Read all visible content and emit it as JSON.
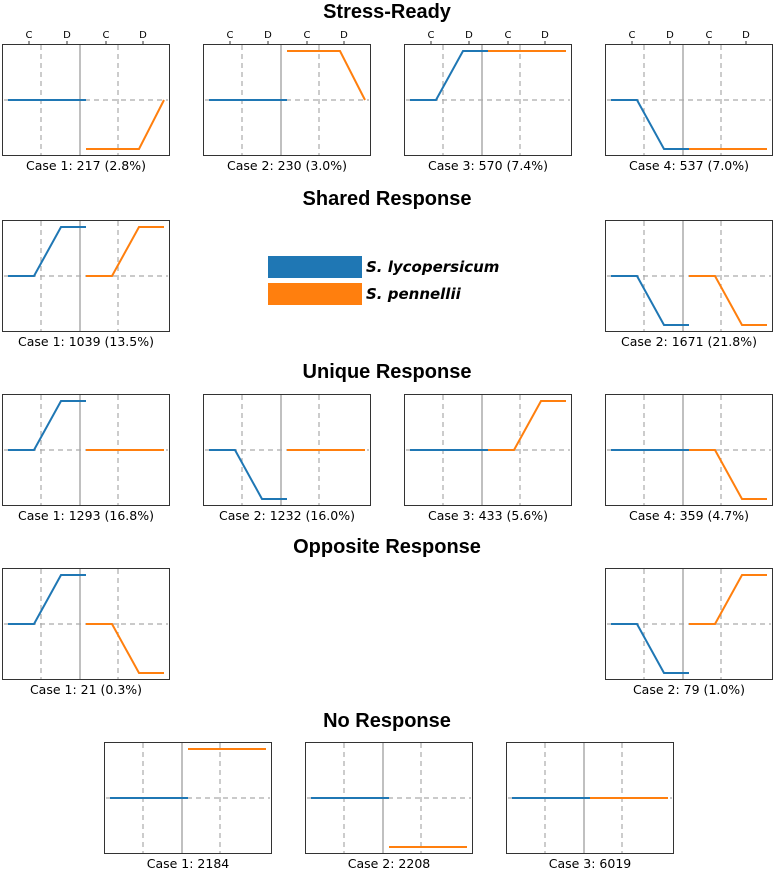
{
  "sections": [
    {
      "title": "Stress-Ready",
      "legend": false,
      "panels": [
        {
          "case": "Case 1",
          "count": 217,
          "percent": "2.8%",
          "caption": "Case 1: 217 (2.8%)",
          "species1": [
            "mid",
            "mid",
            "mid"
          ],
          "species2": [
            "low",
            "low",
            "mid"
          ]
        },
        {
          "case": "Case 2",
          "count": 230,
          "percent": "3.0%",
          "caption": "Case 2: 230 (3.0%)",
          "species1": [
            "mid",
            "mid",
            "mid"
          ],
          "species2": [
            "high",
            "high",
            "mid"
          ]
        },
        {
          "case": "Case 3",
          "count": 570,
          "percent": "7.4%",
          "caption": "Case 3: 570 (7.4%)",
          "species1": [
            "mid",
            "high",
            "high"
          ],
          "species2": [
            "high",
            "high",
            "high"
          ]
        },
        {
          "case": "Case 4",
          "count": 537,
          "percent": "7.0%",
          "caption": "Case 4: 537 (7.0%)",
          "species1": [
            "mid",
            "low",
            "low"
          ],
          "species2": [
            "low",
            "low",
            "low"
          ]
        }
      ]
    },
    {
      "title": "Shared Response",
      "legend": true,
      "panels": [
        {
          "case": "Case 1",
          "count": 1039,
          "percent": "13.5%",
          "caption": "Case 1: 1039 (13.5%)",
          "species1": [
            "mid",
            "high",
            "high"
          ],
          "species2": [
            "mid",
            "high",
            "high"
          ]
        },
        {
          "case": "Case 2",
          "count": 1671,
          "percent": "21.8%",
          "caption": "Case 2: 1671 (21.8%)",
          "species1": [
            "mid",
            "low",
            "low"
          ],
          "species2": [
            "mid",
            "low",
            "low"
          ]
        }
      ]
    },
    {
      "title": "Unique Response",
      "legend": false,
      "panels": [
        {
          "case": "Case 1",
          "count": 1293,
          "percent": "16.8%",
          "caption": "Case 1: 1293 (16.8%)",
          "species1": [
            "mid",
            "high",
            "high"
          ],
          "species2": [
            "mid",
            "mid",
            "mid"
          ]
        },
        {
          "case": "Case 2",
          "count": 1232,
          "percent": "16.0%",
          "caption": "Case 2: 1232 (16.0%)",
          "species1": [
            "mid",
            "low",
            "low"
          ],
          "species2": [
            "mid",
            "mid",
            "mid"
          ]
        },
        {
          "case": "Case 3",
          "count": 433,
          "percent": "5.6%",
          "caption": "Case 3: 433 (5.6%)",
          "species1": [
            "mid",
            "mid",
            "mid"
          ],
          "species2": [
            "mid",
            "high",
            "high"
          ]
        },
        {
          "case": "Case 4",
          "count": 359,
          "percent": "4.7%",
          "caption": "Case 4: 359 (4.7%)",
          "species1": [
            "mid",
            "mid",
            "mid"
          ],
          "species2": [
            "mid",
            "low",
            "low"
          ]
        }
      ]
    },
    {
      "title": "Opposite Response",
      "legend": false,
      "panels": [
        {
          "case": "Case 1",
          "count": 21,
          "percent": "0.3%",
          "caption": "Case 1: 21 (0.3%)",
          "species1": [
            "mid",
            "high",
            "high"
          ],
          "species2": [
            "mid",
            "low",
            "low"
          ]
        },
        {
          "case": "Case 2",
          "count": 79,
          "percent": "1.0%",
          "caption": "Case 2: 79 (1.0%)",
          "species1": [
            "mid",
            "low",
            "low"
          ],
          "species2": [
            "mid",
            "high",
            "high"
          ]
        }
      ]
    },
    {
      "title": "No Response",
      "legend": false,
      "panels": [
        {
          "case": "Case 1",
          "count": 2184,
          "caption": "Case 1: 2184",
          "species1": [
            "mid",
            "mid",
            "mid"
          ],
          "species2": [
            "high",
            "high",
            "high"
          ]
        },
        {
          "case": "Case 2",
          "count": 2208,
          "caption": "Case 2: 2208",
          "species1": [
            "mid",
            "mid",
            "mid"
          ],
          "species2": [
            "low",
            "low",
            "low"
          ]
        },
        {
          "case": "Case 3",
          "count": 6019,
          "caption": "Case 3: 6019",
          "species1": [
            "mid",
            "mid",
            "mid"
          ],
          "species2": [
            "mid",
            "mid",
            "mid"
          ]
        }
      ]
    }
  ],
  "top_tick_labels": [
    "C",
    "D",
    "C",
    "D"
  ],
  "legend": [
    {
      "label": "S. lycopersicum",
      "color": "#1f77b4"
    },
    {
      "label": "S. pennellii",
      "color": "#ff7f0e"
    }
  ],
  "chart_data": {
    "type": "line",
    "title": "",
    "level_scale": {
      "low": -1,
      "mid": 0,
      "high": 1
    },
    "x": [
      "C",
      "D",
      "C",
      "D"
    ],
    "series_names": [
      "S. lycopersicum",
      "S. pennellii"
    ],
    "series_colors": [
      "#1f77b4",
      "#ff7f0e"
    ],
    "grid": true,
    "legend_position": "center"
  }
}
